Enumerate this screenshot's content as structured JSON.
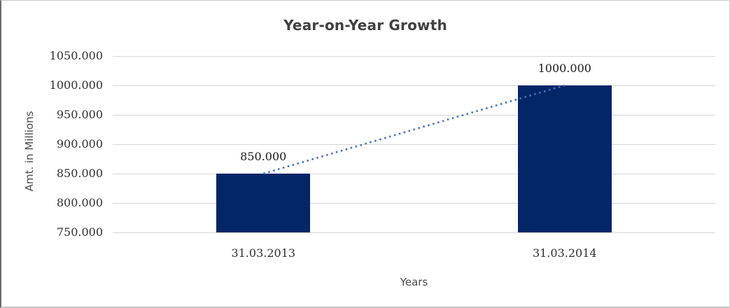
{
  "chart_data": {
    "type": "bar",
    "title": "Year-on-Year Growth",
    "xlabel": "Years",
    "ylabel": "Amt. in Millions",
    "categories": [
      "31.03.2013",
      "31.03.2014"
    ],
    "values": [
      850,
      1000
    ],
    "value_labels": [
      "850.000",
      "1000.000"
    ],
    "ylim": [
      750,
      1050
    ],
    "yticks": [
      1050,
      1000,
      950,
      900,
      850,
      800,
      750
    ],
    "ytick_labels": [
      "1050.000",
      "1000.000",
      "950.000",
      "900.000",
      "850.000",
      "800.000",
      "750.000"
    ],
    "grid": true,
    "legend": "none",
    "trendline": {
      "style": "dotted",
      "connects": [
        "31.03.2013",
        "31.03.2014"
      ]
    },
    "colors": {
      "bar": "#032667",
      "trendline": "#4576BE",
      "gridline": "#D6D6D6",
      "title": "#404040",
      "axis_title": "#4A4A4A",
      "tick_label": "#303030",
      "value_label": "#1A1A1A",
      "background": "#FFFFFF"
    }
  }
}
